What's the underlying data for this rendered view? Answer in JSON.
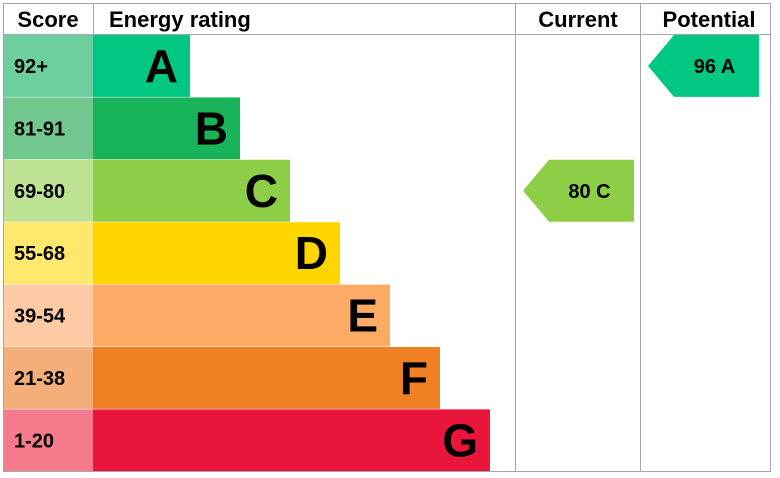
{
  "chart_data": {
    "type": "bar",
    "headers": {
      "score": "Score",
      "rating": "Energy rating",
      "current": "Current",
      "potential": "Potential"
    },
    "bands": [
      {
        "score": "92+",
        "letter": "A",
        "color": "#00c781",
        "score_color": "#6dcf9f"
      },
      {
        "score": "81-91",
        "letter": "B",
        "color": "#19b459",
        "score_color": "#71c78e"
      },
      {
        "score": "69-80",
        "letter": "C",
        "color": "#8dce46",
        "score_color": "#bde292"
      },
      {
        "score": "55-68",
        "letter": "D",
        "color": "#ffd500",
        "score_color": "#ffe86d"
      },
      {
        "score": "39-54",
        "letter": "E",
        "color": "#fcaa65",
        "score_color": "#fdcba3"
      },
      {
        "score": "21-38",
        "letter": "F",
        "color": "#ef8023",
        "score_color": "#f4ae79"
      },
      {
        "score": "1-20",
        "letter": "G",
        "color": "#e9153b",
        "score_color": "#f47a8c"
      }
    ],
    "current": {
      "value": 80,
      "letter": "C",
      "label": "80 C",
      "color": "#8dce46"
    },
    "potential": {
      "value": 96,
      "letter": "A",
      "label": "96 A",
      "color": "#00c781"
    }
  }
}
